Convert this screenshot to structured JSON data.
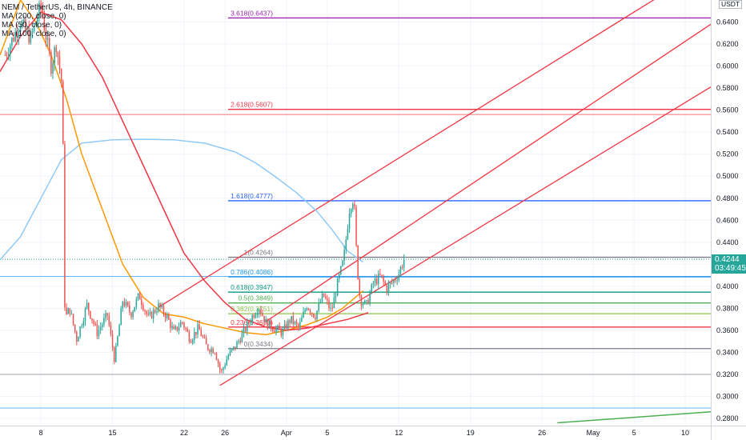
{
  "header": {
    "symbol_line": "NEM / TetherUS, 4h, BINANCE",
    "indicators": [
      "MA (200, close, 0)",
      "MA (50, close, 0)",
      "MA (100, close, 0)"
    ],
    "currency": "USDT"
  },
  "price_badge": {
    "price": "0.4244",
    "countdown": "03:49:45",
    "color": "#26a69a"
  },
  "chart_data": {
    "type": "candlestick",
    "y_ticks": [
      "0.6400",
      "0.6200",
      "0.6000",
      "0.5800",
      "0.5600",
      "0.5400",
      "0.5200",
      "0.5000",
      "0.4800",
      "0.4600",
      "0.4400",
      "0.4200",
      "0.4000",
      "0.3800",
      "0.3600",
      "0.3400",
      "0.3200",
      "0.3000",
      "0.2800"
    ],
    "ylim": [
      0.2735,
      0.66
    ],
    "x_ticks": [
      {
        "label": "8",
        "day": 8
      },
      {
        "label": "15",
        "day": 15
      },
      {
        "label": "22",
        "day": 22
      },
      {
        "label": "26",
        "day": 26
      },
      {
        "label": "Apr",
        "day": 32
      },
      {
        "label": "5",
        "day": 36
      },
      {
        "label": "12",
        "day": 43
      },
      {
        "label": "19",
        "day": 50
      },
      {
        "label": "26",
        "day": 57
      },
      {
        "label": "May",
        "day": 62
      },
      {
        "label": "5",
        "day": 66
      },
      {
        "label": "10",
        "day": 71
      }
    ],
    "xlim": [
      4.0,
      73.5
    ],
    "last_price": 0.4244,
    "fib_levels": [
      {
        "label": "3.618(0.6437)",
        "value": 0.6437,
        "color": "#9c27b0"
      },
      {
        "label": "2.618(0.5607)",
        "value": 0.5607,
        "color": "#f23645"
      },
      {
        "label": "1.618(0.4777)",
        "value": 0.4777,
        "color": "#2962ff"
      },
      {
        "label": "1(0.4264)",
        "value": 0.4264,
        "color": "#787b86"
      },
      {
        "label": "0.786(0.4086)",
        "value": 0.4086,
        "color": "#2196f3"
      },
      {
        "label": "0.618(0.3947)",
        "value": 0.3947,
        "color": "#089981"
      },
      {
        "label": "0.5(0.3849)",
        "value": 0.3849,
        "color": "#4caf50"
      },
      {
        "label": "0.382(0.3751)",
        "value": 0.3751,
        "color": "#8bc34a"
      },
      {
        "label": "0.236(0.3630)",
        "value": 0.363,
        "color": "#f23645"
      },
      {
        "label": "0(0.3434)",
        "value": 0.3434,
        "color": "#787b86"
      }
    ],
    "horizontal_lines": [
      {
        "value": 0.556,
        "color": "#f23645"
      },
      {
        "value": 0.409,
        "color": "#2196f3"
      },
      {
        "value": 0.32,
        "color": "#787b86"
      },
      {
        "value": 0.2895,
        "color": "#2196f3"
      }
    ],
    "channel_lines": [
      {
        "x": [
          19.5,
          70.5
        ],
        "y": [
          0.381,
          0.675
        ],
        "color": "#f23645"
      },
      {
        "x": [
          30.0,
          73.5
        ],
        "y": [
          0.368,
          0.638
        ],
        "color": "#f23645"
      },
      {
        "x": [
          25.5,
          73.5
        ],
        "y": [
          0.31,
          0.581
        ],
        "color": "#f23645"
      }
    ],
    "trend_line": {
      "x": [
        58.5,
        73.5
      ],
      "y": [
        0.276,
        0.286
      ],
      "color": "#4caf50"
    },
    "ma_series": [
      {
        "name": "MA (200, close, 0)",
        "color": "#90caf9",
        "x": [
          4.0,
          6.0,
          8.0,
          10.0,
          12.0,
          15.0,
          18.0,
          21.0,
          24.0,
          27.0,
          29.0,
          31.0,
          33.0,
          35.0,
          36.5,
          38.0,
          39.5
        ],
        "y": [
          0.424,
          0.445,
          0.48,
          0.515,
          0.53,
          0.533,
          0.5335,
          0.533,
          0.53,
          0.522,
          0.512,
          0.499,
          0.485,
          0.468,
          0.451,
          0.432,
          0.422
        ]
      },
      {
        "name": "MA (50, close, 0)",
        "color": "#ff9800",
        "x": [
          4.0,
          6.0,
          7.5,
          9.0,
          10.5,
          12.0,
          14.0,
          16.0,
          18.0,
          20.0,
          22.0,
          24.0,
          26.0,
          28.0,
          30.0,
          32.0,
          34.0,
          36.0,
          37.5,
          38.5,
          39.5
        ],
        "y": [
          0.61,
          0.66,
          0.64,
          0.61,
          0.57,
          0.52,
          0.47,
          0.42,
          0.39,
          0.375,
          0.372,
          0.366,
          0.362,
          0.358,
          0.356,
          0.36,
          0.365,
          0.372,
          0.38,
          0.388,
          0.396
        ]
      },
      {
        "name": "MA (100, close, 0)",
        "color": "#f23645",
        "x": [
          4.0,
          6.0,
          8.0,
          10.0,
          12.0,
          14.0,
          16.0,
          18.0,
          20.0,
          22.0,
          24.0,
          26.0,
          28.0,
          30.0,
          32.0,
          34.0,
          36.0,
          38.0,
          40.0
        ],
        "y": [
          0.595,
          0.627,
          0.649,
          0.642,
          0.62,
          0.59,
          0.55,
          0.51,
          0.47,
          0.43,
          0.405,
          0.385,
          0.37,
          0.363,
          0.36,
          0.362,
          0.366,
          0.37,
          0.376
        ]
      }
    ],
    "candles": {
      "up_color": "#26a69a",
      "down_color": "#ef5350",
      "path": [
        [
          4.5,
          0.61
        ],
        [
          6.0,
          0.64
        ],
        [
          7.0,
          0.625
        ],
        [
          8.0,
          0.655
        ],
        [
          9.0,
          0.6
        ],
        [
          9.5,
          0.62
        ],
        [
          10.1,
          0.58
        ],
        [
          10.35,
          0.37
        ],
        [
          10.8,
          0.38
        ],
        [
          11.5,
          0.352
        ],
        [
          12.5,
          0.383
        ],
        [
          13.5,
          0.358
        ],
        [
          14.5,
          0.374
        ],
        [
          15.2,
          0.333
        ],
        [
          16.0,
          0.387
        ],
        [
          16.8,
          0.375
        ],
        [
          17.6,
          0.392
        ],
        [
          18.5,
          0.371
        ],
        [
          19.5,
          0.382
        ],
        [
          20.3,
          0.373
        ],
        [
          21.0,
          0.358
        ],
        [
          21.8,
          0.368
        ],
        [
          22.6,
          0.352
        ],
        [
          23.4,
          0.362
        ],
        [
          24.2,
          0.345
        ],
        [
          25.0,
          0.342
        ],
        [
          25.6,
          0.321
        ],
        [
          26.3,
          0.337
        ],
        [
          27.0,
          0.345
        ],
        [
          27.8,
          0.358
        ],
        [
          28.6,
          0.372
        ],
        [
          29.3,
          0.382
        ],
        [
          30.0,
          0.367
        ],
        [
          30.8,
          0.362
        ],
        [
          31.6,
          0.358
        ],
        [
          32.4,
          0.37
        ],
        [
          33.2,
          0.362
        ],
        [
          34.0,
          0.383
        ],
        [
          34.8,
          0.373
        ],
        [
          35.6,
          0.392
        ],
        [
          36.4,
          0.377
        ],
        [
          37.0,
          0.402
        ],
        [
          37.6,
          0.424
        ],
        [
          38.2,
          0.473
        ],
        [
          38.6,
          0.481
        ],
        [
          38.9,
          0.421
        ],
        [
          39.2,
          0.389
        ],
        [
          39.8,
          0.382
        ],
        [
          40.5,
          0.403
        ],
        [
          41.2,
          0.409
        ],
        [
          41.8,
          0.398
        ],
        [
          42.4,
          0.404
        ],
        [
          43.0,
          0.412
        ],
        [
          43.5,
          0.4244
        ]
      ]
    }
  }
}
